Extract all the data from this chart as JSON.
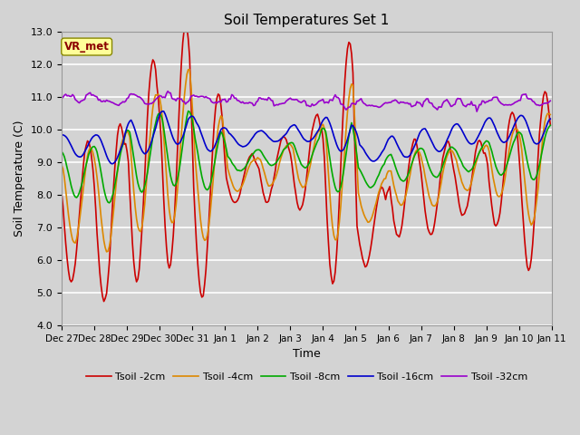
{
  "title": "Soil Temperatures Set 1",
  "xlabel": "Time",
  "ylabel": "Soil Temperature (C)",
  "ylim": [
    4.0,
    13.0
  ],
  "yticks": [
    4.0,
    5.0,
    6.0,
    7.0,
    8.0,
    9.0,
    10.0,
    11.0,
    12.0,
    13.0
  ],
  "line_colors": {
    "2cm": "#cc0000",
    "4cm": "#dd8800",
    "8cm": "#00aa00",
    "16cm": "#0000cc",
    "32cm": "#9900cc"
  },
  "line_labels": {
    "2cm": "Tsoil -2cm",
    "4cm": "Tsoil -4cm",
    "8cm": "Tsoil -8cm",
    "16cm": "Tsoil -16cm",
    "32cm": "Tsoil -32cm"
  },
  "xtick_labels": [
    "Dec 27",
    "Dec 28",
    "Dec 29",
    "Dec 30",
    "Dec 31",
    "Jan 1",
    "Jan 2",
    "Jan 3",
    "Jan 4",
    "Jan 5",
    "Jan 6",
    "Jan 7",
    "Jan 8",
    "Jan 9",
    "Jan 10",
    "Jan 11"
  ],
  "background_color": "#d3d3d3",
  "annotation_text": "VR_met",
  "annotation_color": "#8b0000",
  "annotation_bg": "#ffff99",
  "line_width": 1.2
}
